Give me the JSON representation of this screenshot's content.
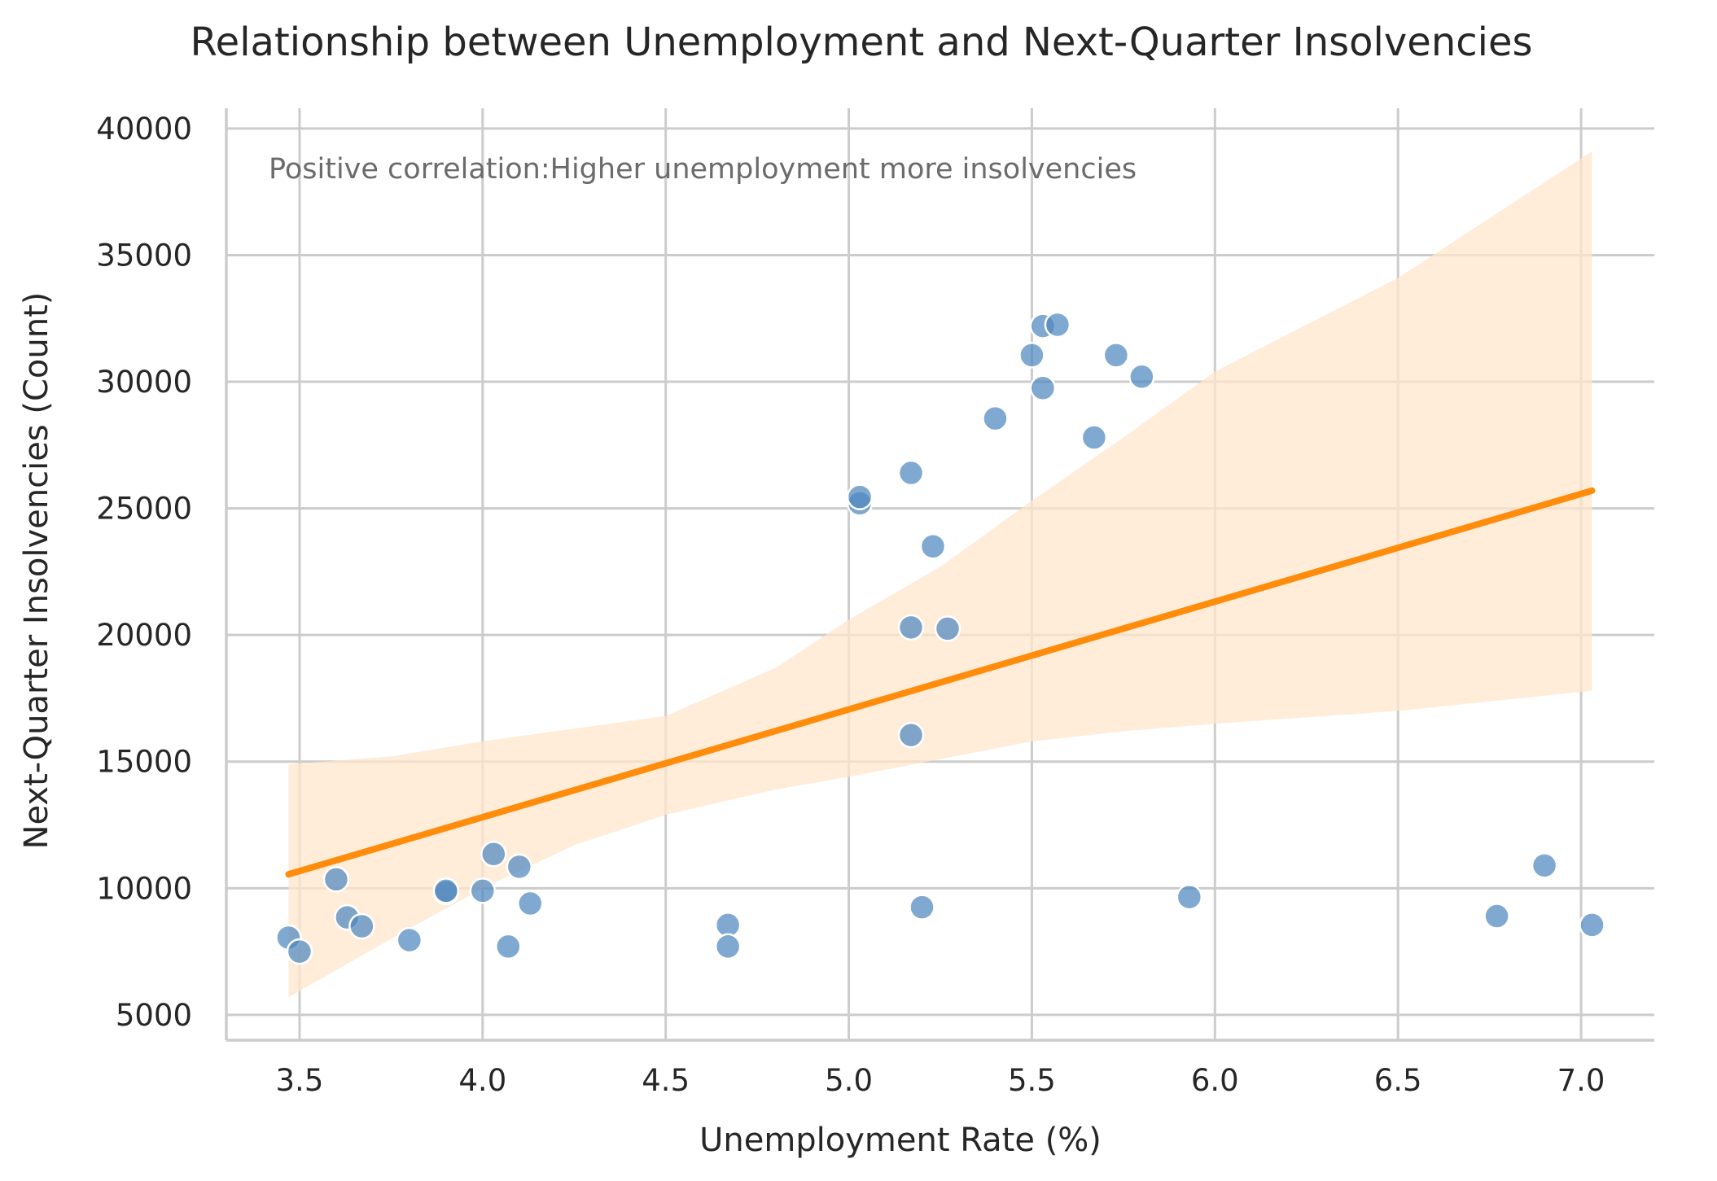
{
  "chart_data": {
    "type": "scatter",
    "title": "Relationship between Unemployment and Next-Quarter Insolvencies",
    "xlabel": "Unemployment Rate (%)",
    "ylabel": "Next-Quarter Insolvencies (Count)",
    "xlim": [
      3.3,
      7.2
    ],
    "ylim": [
      4000,
      40800
    ],
    "xticks": [
      3.5,
      4.0,
      4.5,
      5.0,
      5.5,
      6.0,
      6.5,
      7.0
    ],
    "xtick_labels": [
      "3.5",
      "4.0",
      "4.5",
      "5.0",
      "5.5",
      "6.0",
      "6.5",
      "7.0"
    ],
    "yticks": [
      5000,
      10000,
      15000,
      20000,
      25000,
      30000,
      35000,
      40000
    ],
    "ytick_labels": [
      "5000",
      "10000",
      "15000",
      "20000",
      "25000",
      "30000",
      "35000",
      "40000"
    ],
    "grid": true,
    "annotation": "Positive correlation:Higher unemployment more insolvencies",
    "colors": {
      "points": "#4f88bf",
      "points_stroke": "#ffffff",
      "regression_line": "#ff8c0a",
      "confidence_band": "#ffe6cc"
    },
    "points": [
      {
        "x": 3.47,
        "y": 8050
      },
      {
        "x": 3.5,
        "y": 7500
      },
      {
        "x": 3.6,
        "y": 10350
      },
      {
        "x": 3.63,
        "y": 8850
      },
      {
        "x": 3.67,
        "y": 8500
      },
      {
        "x": 3.8,
        "y": 7950
      },
      {
        "x": 3.9,
        "y": 9850
      },
      {
        "x": 3.9,
        "y": 9900
      },
      {
        "x": 4.0,
        "y": 9900
      },
      {
        "x": 4.03,
        "y": 11350
      },
      {
        "x": 4.07,
        "y": 7700
      },
      {
        "x": 4.1,
        "y": 10850
      },
      {
        "x": 4.13,
        "y": 9400
      },
      {
        "x": 4.67,
        "y": 8550
      },
      {
        "x": 4.67,
        "y": 7700
      },
      {
        "x": 5.03,
        "y": 25200
      },
      {
        "x": 5.03,
        "y": 25450
      },
      {
        "x": 5.17,
        "y": 26400
      },
      {
        "x": 5.17,
        "y": 20300
      },
      {
        "x": 5.17,
        "y": 16050
      },
      {
        "x": 5.2,
        "y": 9250
      },
      {
        "x": 5.23,
        "y": 23500
      },
      {
        "x": 5.27,
        "y": 20250
      },
      {
        "x": 5.4,
        "y": 28550
      },
      {
        "x": 5.5,
        "y": 31050
      },
      {
        "x": 5.53,
        "y": 32200
      },
      {
        "x": 5.53,
        "y": 29750
      },
      {
        "x": 5.57,
        "y": 32250
      },
      {
        "x": 5.67,
        "y": 27800
      },
      {
        "x": 5.73,
        "y": 31050
      },
      {
        "x": 5.8,
        "y": 30200
      },
      {
        "x": 5.93,
        "y": 9650
      },
      {
        "x": 6.77,
        "y": 8900
      },
      {
        "x": 6.9,
        "y": 10900
      },
      {
        "x": 7.03,
        "y": 8550
      }
    ],
    "regression": {
      "x": [
        3.47,
        7.03
      ],
      "y": [
        10550,
        25700
      ]
    },
    "confidence_band": {
      "x": [
        3.47,
        3.75,
        4.0,
        4.25,
        4.5,
        4.8,
        5.0,
        5.25,
        5.5,
        5.75,
        6.0,
        6.5,
        7.03
      ],
      "lower": [
        5700,
        8000,
        10000,
        11700,
        12900,
        13900,
        14400,
        15100,
        15800,
        16200,
        16500,
        17000,
        17800
      ],
      "upper": [
        14900,
        15200,
        15800,
        16300,
        16800,
        18700,
        20600,
        22700,
        25300,
        27800,
        30400,
        34100,
        39100
      ]
    }
  }
}
